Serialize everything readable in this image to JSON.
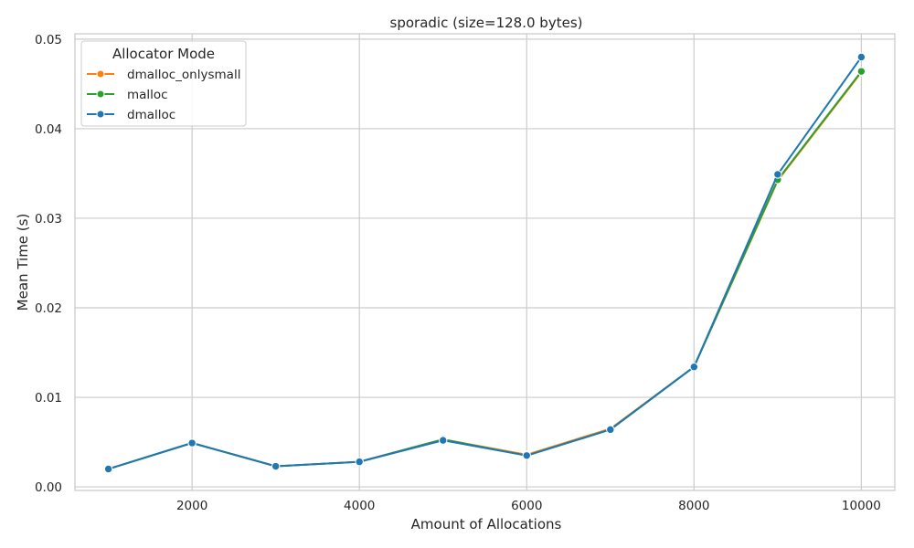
{
  "chart_data": {
    "type": "line",
    "title": "sporadic (size=128.0 bytes)",
    "xlabel": "Amount of Allocations",
    "ylabel": "Mean Time (s)",
    "x": [
      1000,
      2000,
      3000,
      4000,
      5000,
      6000,
      7000,
      8000,
      9000,
      10000
    ],
    "xlim": [
      600,
      10400
    ],
    "ylim": [
      -0.0004,
      0.0506
    ],
    "x_ticks": [
      2000,
      4000,
      6000,
      8000,
      10000
    ],
    "x_tick_labels": [
      "2000",
      "4000",
      "6000",
      "8000",
      "10000"
    ],
    "y_ticks": [
      0.0,
      0.01,
      0.02,
      0.03,
      0.04,
      0.05
    ],
    "y_tick_labels": [
      "0.00",
      "0.01",
      "0.02",
      "0.03",
      "0.04",
      "0.05"
    ],
    "grid": true,
    "legend": {
      "title": "Allocator Mode",
      "position": "top-left"
    },
    "series": [
      {
        "name": "dmalloc_onlysmall",
        "color": "#ff7f0e",
        "marker": "circle",
        "values": [
          0.002,
          0.0049,
          0.0023,
          0.0028,
          0.0053,
          0.0036,
          0.0065,
          0.0134,
          0.0342,
          0.0463
        ]
      },
      {
        "name": "malloc",
        "color": "#2ca02c",
        "marker": "circle",
        "values": [
          0.002,
          0.0049,
          0.0023,
          0.0028,
          0.0053,
          0.0035,
          0.0064,
          0.0134,
          0.0343,
          0.0464
        ]
      },
      {
        "name": "dmalloc",
        "color": "#1f77b4",
        "marker": "circle",
        "values": [
          0.002,
          0.0049,
          0.0023,
          0.0028,
          0.0052,
          0.0035,
          0.0064,
          0.0134,
          0.0349,
          0.048
        ]
      }
    ]
  }
}
